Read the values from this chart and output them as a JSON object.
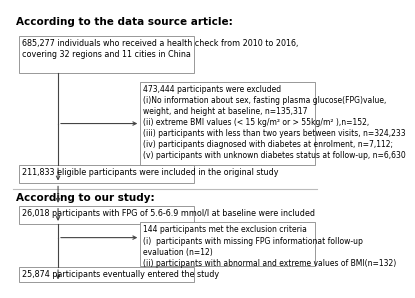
{
  "bg_color": "#ffffff",
  "box_bg": "#ffffff",
  "box_edge": "#888888",
  "section1_label": "According to the data source article:",
  "section2_label": "According to our study:",
  "box1_text": "685,277 individuals who received a health check from 2010 to 2016,\ncovering 32 regions and 11 cities in China",
  "box2_text": "473,444 participants were excluded\n(i)No information about sex, fasting plasma glucose(FPG)value,\nweight, and height at baseline, n=135,317\n(ii) extreme BMI values (< 15 kg/m² or > 55kg/m² ),n=152,\n(iii) participants with less than two years between visits, n=324,233\n(iv) participants diagnosed with diabetes at enrolment, n=7,112;\n(v) participants with unknown diabetes status at follow-up, n=6,630",
  "box3_text": "211,833 eligible participants were included in the original study",
  "box4_text": "26,018 participants with FPG of 5.6-6.9 mmol/l at baseline were included",
  "box5_text": "144 participants met the exclusion criteria\n(i)  participants with missing FPG informationat follow-up\nevaluation (n=12)\n(ii) participants with abnormal and extreme values of BMI(n=132)",
  "box6_text": "25,874 participants eventually entered the study",
  "font_size": 5.8,
  "label_font_size": 7.5,
  "arrow_color": "#444444",
  "line_color": "#aaaaaa",
  "sep_color": "#bbbbbb"
}
